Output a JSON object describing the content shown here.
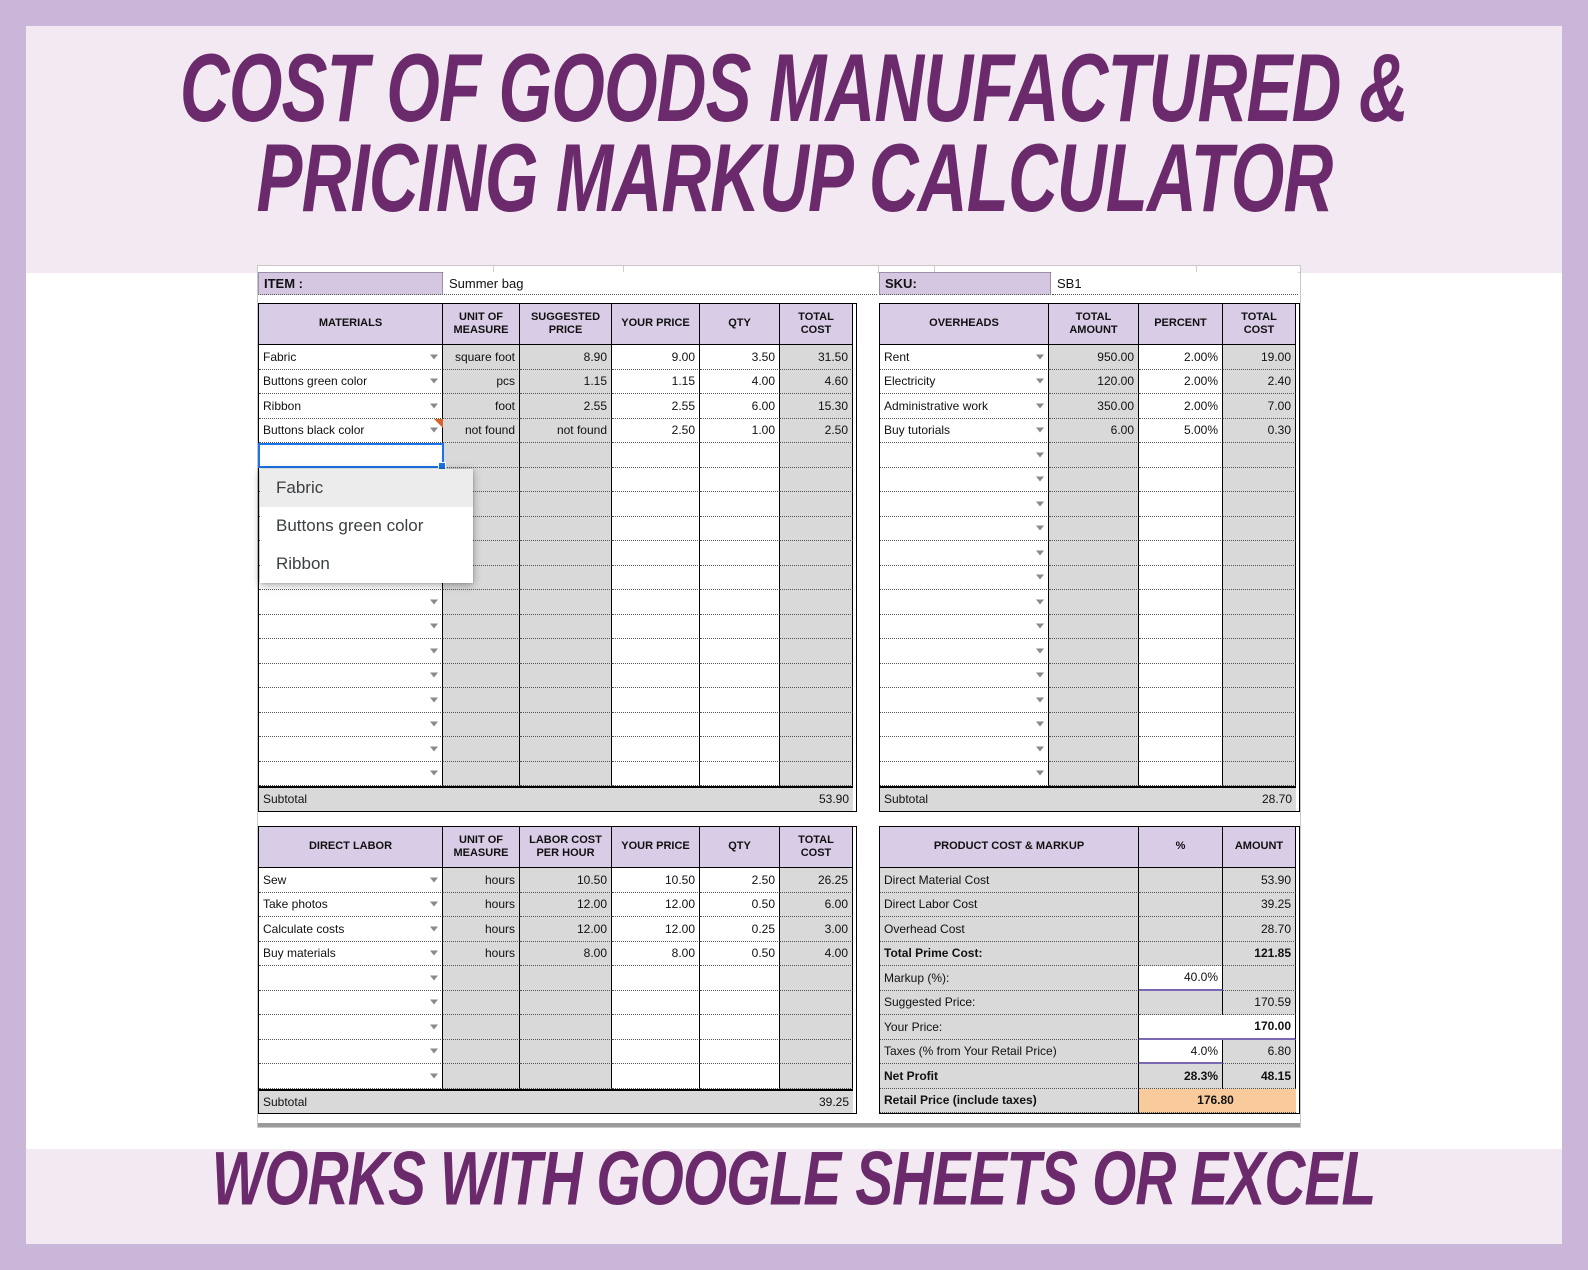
{
  "banner": {
    "title_line1": "COST OF GOODS MANUFACTURED &",
    "title_line2": "PRICING MARKUP CALCULATOR",
    "footer": "WORKS WITH GOOGLE SHEETS OR EXCEL"
  },
  "item": {
    "label": "ITEM :",
    "value": "Summer bag"
  },
  "sku": {
    "label": "SKU:",
    "value": "SB1"
  },
  "materials": {
    "headers": [
      "MATERIALS",
      "UNIT OF MEASURE",
      "SUGGESTED PRICE",
      "YOUR PRICE",
      "QTY",
      "TOTAL COST"
    ],
    "rows": [
      {
        "name": "Fabric",
        "unit": "square foot",
        "suggested": "8.90",
        "your_price": "9.00",
        "qty": "3.50",
        "total": "31.50"
      },
      {
        "name": "Buttons green color",
        "unit": "pcs",
        "suggested": "1.15",
        "your_price": "1.15",
        "qty": "4.00",
        "total": "4.60"
      },
      {
        "name": "Ribbon",
        "unit": "foot",
        "suggested": "2.55",
        "your_price": "2.55",
        "qty": "6.00",
        "total": "15.30"
      },
      {
        "name": "Buttons black color",
        "unit": "not found",
        "suggested": "not found",
        "your_price": "2.50",
        "qty": "1.00",
        "total": "2.50"
      }
    ],
    "empty_row_count": 14,
    "subtotal_label": "Subtotal",
    "subtotal_value": "53.90"
  },
  "materials_dropdown": {
    "options": [
      "Fabric",
      "Buttons green color",
      "Ribbon"
    ],
    "highlighted": "Fabric"
  },
  "overheads": {
    "headers": [
      "OVERHEADS",
      "TOTAL AMOUNT",
      "PERCENT",
      "TOTAL COST"
    ],
    "rows": [
      {
        "name": "Rent",
        "amount": "950.00",
        "percent": "2.00%",
        "total": "19.00"
      },
      {
        "name": "Electricity",
        "amount": "120.00",
        "percent": "2.00%",
        "total": "2.40"
      },
      {
        "name": "Administrative work",
        "amount": "350.00",
        "percent": "2.00%",
        "total": "7.00"
      },
      {
        "name": "Buy tutorials",
        "amount": "6.00",
        "percent": "5.00%",
        "total": "0.30"
      }
    ],
    "empty_row_count": 14,
    "subtotal_label": "Subtotal",
    "subtotal_value": "28.70"
  },
  "direct_labor": {
    "headers": [
      "DIRECT LABOR",
      "UNIT OF MEASURE",
      "LABOR COST PER HOUR",
      "YOUR PRICE",
      "QTY",
      "TOTAL COST"
    ],
    "rows": [
      {
        "name": "Sew",
        "unit": "hours",
        "suggested": "10.50",
        "your_price": "10.50",
        "qty": "2.50",
        "total": "26.25"
      },
      {
        "name": "Take photos",
        "unit": "hours",
        "suggested": "12.00",
        "your_price": "12.00",
        "qty": "0.50",
        "total": "6.00"
      },
      {
        "name": "Calculate costs",
        "unit": "hours",
        "suggested": "12.00",
        "your_price": "12.00",
        "qty": "0.25",
        "total": "3.00"
      },
      {
        "name": "Buy materials",
        "unit": "hours",
        "suggested": "8.00",
        "your_price": "8.00",
        "qty": "0.50",
        "total": "4.00"
      }
    ],
    "empty_row_count": 5,
    "subtotal_label": "Subtotal",
    "subtotal_value": "39.25"
  },
  "product_cost": {
    "headers": [
      "PRODUCT COST & MARKUP",
      "%",
      "AMOUNT"
    ],
    "rows": [
      {
        "label": "Direct Material Cost",
        "pct": "",
        "amount": "53.90"
      },
      {
        "label": "Direct Labor Cost",
        "pct": "",
        "amount": "39.25"
      },
      {
        "label": "Overhead Cost",
        "pct": "",
        "amount": "28.70"
      },
      {
        "label": "Total Prime Cost:",
        "pct": "",
        "amount": "121.85",
        "bold_label": true,
        "bold_amount": true
      },
      {
        "label": "Markup (%):",
        "pct": "40.0%",
        "amount": "",
        "pct_input": true
      },
      {
        "label": "Suggested Price:",
        "pct": "",
        "amount": "170.59"
      },
      {
        "label": "Your Price:",
        "merged": "170.00",
        "merged_input": true,
        "bold_amount": true
      },
      {
        "label": "Taxes (% from Your Retail Price)",
        "pct": "4.0%",
        "amount": "6.80",
        "pct_input": true
      },
      {
        "label": "Net Profit",
        "pct": "28.3%",
        "amount": "48.15",
        "bold_label": true,
        "bold_pct": true,
        "bold_amount": true
      },
      {
        "label": "Retail Price (include taxes)",
        "merged": "176.80",
        "merged_highlight": true,
        "bold_label": true,
        "bold_amount": true
      }
    ]
  },
  "colors": {
    "frame": "#c9b6d8",
    "band": "#f2e9f2",
    "title_text": "#6b2a6b",
    "header_fill": "#d8cce6",
    "computed_fill": "#d9d9d9",
    "highlight_fill": "#f9cb9c",
    "input_underline": "#7b68b5",
    "selection_blue": "#1a73e8",
    "comment_marker": "#d9622b"
  }
}
